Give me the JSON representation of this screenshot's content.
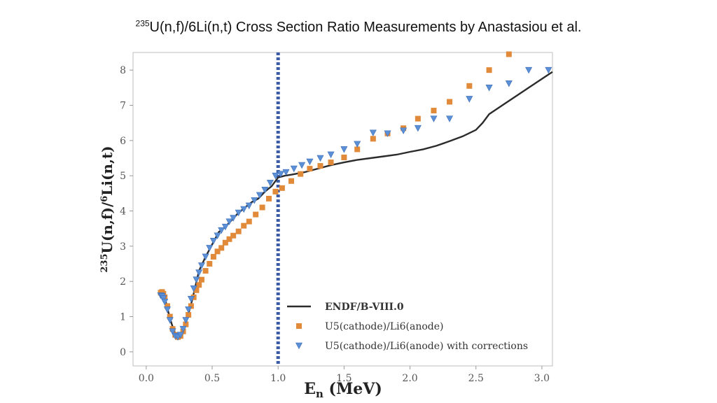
{
  "slide": {
    "title_sup": "235",
    "title_main": "U(n,f)/6Li(n,t)  Cross Section Ratio Measurements by Anastasiou et al."
  },
  "chart_data": {
    "type": "scatter",
    "xlabel": "E_n (MeV)",
    "ylabel": "235U(n,f)/6Li(n,t)",
    "xlim": [
      -0.1,
      3.08
    ],
    "ylim": [
      -0.4,
      8.5
    ],
    "xticks": [
      "0.0",
      "0.5",
      "1.0",
      "1.5",
      "2.0",
      "2.5",
      "3.0"
    ],
    "yticks": [
      "0",
      "1",
      "2",
      "3",
      "4",
      "5",
      "6",
      "7",
      "8"
    ],
    "vline": {
      "x": 1.0,
      "style": "dotted",
      "color": "#3b5ba5"
    },
    "series": [
      {
        "name": "ENDF/B-VIII.0",
        "kind": "line",
        "color": "#2b2b2b",
        "x": [
          0.12,
          0.15,
          0.18,
          0.21,
          0.24,
          0.27,
          0.3,
          0.35,
          0.4,
          0.45,
          0.5,
          0.55,
          0.6,
          0.65,
          0.7,
          0.75,
          0.8,
          0.85,
          0.9,
          0.95,
          1.0,
          1.05,
          1.1,
          1.2,
          1.3,
          1.4,
          1.5,
          1.6,
          1.7,
          1.8,
          1.9,
          2.0,
          2.1,
          2.2,
          2.3,
          2.4,
          2.5,
          2.55,
          2.6,
          2.7,
          2.8,
          2.9,
          3.0,
          3.08
        ],
        "y": [
          1.6,
          1.4,
          0.95,
          0.6,
          0.42,
          0.5,
          0.8,
          1.5,
          2.3,
          2.7,
          3.05,
          3.4,
          3.55,
          3.75,
          3.95,
          4.1,
          4.25,
          4.35,
          4.55,
          4.7,
          4.95,
          5.0,
          5.03,
          5.1,
          5.2,
          5.3,
          5.38,
          5.45,
          5.5,
          5.55,
          5.6,
          5.68,
          5.75,
          5.85,
          5.98,
          6.12,
          6.3,
          6.5,
          6.75,
          7.0,
          7.25,
          7.5,
          7.75,
          7.95
        ]
      },
      {
        "name": "U5(cathode)/Li6(anode)",
        "kind": "square",
        "color": "#e08a3a",
        "x": [
          0.11,
          0.12,
          0.13,
          0.14,
          0.16,
          0.18,
          0.2,
          0.22,
          0.24,
          0.26,
          0.28,
          0.3,
          0.32,
          0.34,
          0.36,
          0.38,
          0.4,
          0.42,
          0.45,
          0.48,
          0.51,
          0.54,
          0.57,
          0.6,
          0.63,
          0.66,
          0.7,
          0.74,
          0.78,
          0.83,
          0.88,
          0.93,
          0.98,
          1.03,
          1.1,
          1.17,
          1.24,
          1.32,
          1.4,
          1.5,
          1.6,
          1.72,
          1.83,
          1.95,
          2.06,
          2.18,
          2.3,
          2.45,
          2.6,
          2.75
        ],
        "y": [
          1.68,
          1.7,
          1.65,
          1.55,
          1.3,
          1.0,
          0.65,
          0.48,
          0.42,
          0.45,
          0.58,
          0.78,
          1.05,
          1.3,
          1.55,
          1.75,
          1.9,
          2.05,
          2.3,
          2.5,
          2.7,
          2.85,
          2.95,
          3.1,
          3.2,
          3.3,
          3.42,
          3.58,
          3.7,
          3.9,
          4.1,
          4.35,
          4.55,
          4.65,
          4.85,
          5.05,
          5.2,
          5.28,
          5.38,
          5.52,
          5.75,
          6.05,
          6.2,
          6.35,
          6.62,
          6.85,
          7.1,
          7.55,
          8.0,
          8.45
        ]
      },
      {
        "name": "U5(cathode)/Li6(anode) with corrections",
        "kind": "triangle",
        "color": "#5b8fd6",
        "x": [
          0.11,
          0.12,
          0.13,
          0.14,
          0.16,
          0.18,
          0.2,
          0.22,
          0.24,
          0.26,
          0.28,
          0.3,
          0.32,
          0.34,
          0.36,
          0.38,
          0.4,
          0.42,
          0.45,
          0.48,
          0.51,
          0.54,
          0.57,
          0.6,
          0.63,
          0.66,
          0.7,
          0.74,
          0.78,
          0.82,
          0.86,
          0.9,
          0.94,
          0.98,
          1.02,
          1.06,
          1.12,
          1.18,
          1.24,
          1.32,
          1.4,
          1.5,
          1.6,
          1.72,
          1.83,
          1.95,
          2.06,
          2.18,
          2.3,
          2.45,
          2.6,
          2.75,
          2.9,
          3.05
        ],
        "y": [
          1.6,
          1.58,
          1.52,
          1.42,
          1.2,
          0.9,
          0.58,
          0.45,
          0.42,
          0.48,
          0.65,
          0.9,
          1.2,
          1.5,
          1.8,
          2.05,
          2.25,
          2.45,
          2.7,
          2.95,
          3.15,
          3.3,
          3.45,
          3.55,
          3.7,
          3.8,
          3.95,
          4.05,
          4.15,
          4.3,
          4.45,
          4.6,
          4.8,
          5.0,
          5.05,
          5.1,
          5.2,
          5.3,
          5.4,
          5.5,
          5.6,
          5.75,
          5.9,
          6.22,
          6.2,
          6.28,
          6.35,
          6.62,
          6.62,
          7.18,
          7.5,
          7.62,
          8.0,
          8.0
        ]
      }
    ],
    "legend": {
      "position": "lower-right",
      "entries": [
        "ENDF/B-VIII.0",
        "U5(cathode)/Li6(anode)",
        "U5(cathode)/Li6(anode) with corrections"
      ]
    }
  }
}
